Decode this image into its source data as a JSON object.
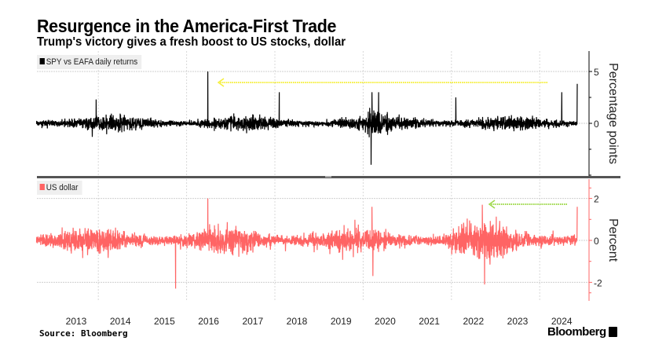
{
  "title": "Resurgence in the America-First Trade",
  "subtitle": "Trump's victory gives a fresh boost to US stocks, dollar",
  "source": "Source: Bloomberg",
  "brand": "Bloomberg",
  "chart_data": [
    {
      "type": "line",
      "title": "SPY vs EAFA daily returns",
      "legend": "SPY vs EAFA daily returns",
      "ylabel": "Percentage points",
      "ylim": [
        -4.2,
        6.2
      ],
      "yticks": [
        "5",
        "0"
      ],
      "ytick_values": [
        5,
        0
      ],
      "x_range": [
        2012.6,
        2024.85
      ],
      "color": "#000000",
      "typical_daily_range": [
        -1,
        1
      ],
      "notable_points": [
        {
          "x": 2016.48,
          "y": 5.0
        },
        {
          "x": 2013.95,
          "y": 2.3
        },
        {
          "x": 2018.1,
          "y": 3.0
        },
        {
          "x": 2020.18,
          "y": -4.0
        },
        {
          "x": 2020.2,
          "y": 3.0
        },
        {
          "x": 2020.35,
          "y": 3.0
        },
        {
          "x": 2022.1,
          "y": 2.5
        },
        {
          "x": 2024.5,
          "y": 3.0
        },
        {
          "x": 2024.85,
          "y": 3.8
        }
      ],
      "annotation": "yellow arrow pointing back to the 2016 spike"
    },
    {
      "type": "line",
      "title": "US dollar",
      "legend": "US dollar",
      "ylabel": "Percent",
      "ylim": [
        -2.9,
        2.9
      ],
      "yticks": [
        "2",
        "0",
        "-2"
      ],
      "ytick_values": [
        2,
        0,
        -2
      ],
      "x_range": [
        2012.6,
        2024.85
      ],
      "color": "#ff6464",
      "notable_points": [
        {
          "x": 2016.48,
          "y": 2.0
        },
        {
          "x": 2015.75,
          "y": -2.3
        },
        {
          "x": 2020.2,
          "y": 1.6
        },
        {
          "x": 2020.22,
          "y": -1.7
        },
        {
          "x": 2022.75,
          "y": -2.1
        },
        {
          "x": 2022.7,
          "y": 1.7
        },
        {
          "x": 2024.85,
          "y": 1.6
        }
      ],
      "annotation": "green arrow pointing back to the 2022 spike"
    }
  ],
  "x_ticks": [
    "2013",
    "2014",
    "2015",
    "2016",
    "2017",
    "2018",
    "2019",
    "2020",
    "2021",
    "2022",
    "2023",
    "2024"
  ],
  "colors": {
    "top": "#000000",
    "bottom": "#ff6464",
    "arrow_top": "#f5ef3a",
    "arrow_bottom": "#9ed84a"
  }
}
